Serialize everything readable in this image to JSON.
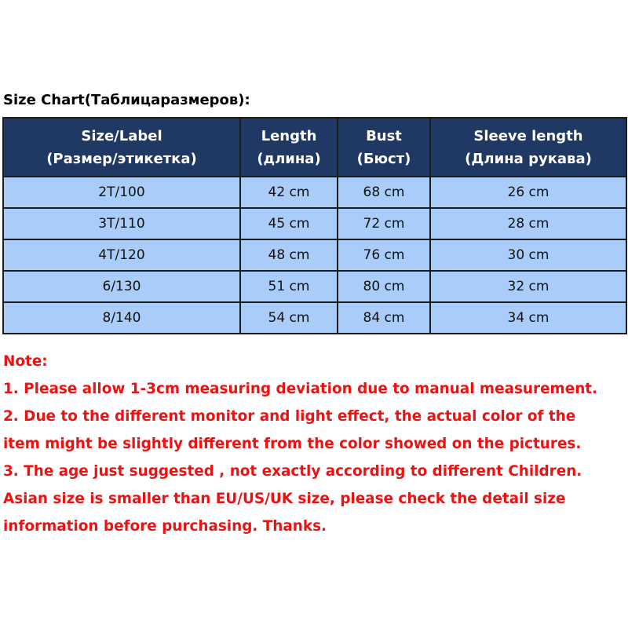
{
  "title": "Size Chart(Таблицаразмеров):",
  "colors": {
    "header_bg": "#203864",
    "row_bg": "#a9ccf9",
    "border": "#1c1c1c",
    "note_text": "#ee1111"
  },
  "table": {
    "headers": [
      {
        "line1": "Size/Label",
        "line2": "(Размер/этикетка)"
      },
      {
        "line1": "Length",
        "line2": "(длина)"
      },
      {
        "line1": "Bust",
        "line2": "(Бюст)"
      },
      {
        "line1": "Sleeve length",
        "line2": "(Длина рукава)"
      }
    ],
    "rows": [
      [
        "2T/100",
        "42 cm",
        "68 cm",
        "26 cm"
      ],
      [
        "3T/110",
        "45 cm",
        "72 cm",
        "28 cm"
      ],
      [
        "4T/120",
        "48 cm",
        "76 cm",
        "30 cm"
      ],
      [
        "6/130",
        "51 cm",
        "80 cm",
        "32 cm"
      ],
      [
        "8/140",
        "54 cm",
        "84 cm",
        "34 cm"
      ]
    ]
  },
  "notes": {
    "heading": "Note:",
    "lines": [
      "1. Please allow 1-3cm measuring deviation due to manual measurement.",
      "2. Due to the different monitor and light effect, the actual color of the",
      "item might be slightly different from the color showed on the pictures.",
      "3. The age just suggested , not exactly according to different Children.",
      "Asian size is smaller than EU/US/UK size, please check the detail size",
      "information before purchasing. Thanks."
    ]
  }
}
